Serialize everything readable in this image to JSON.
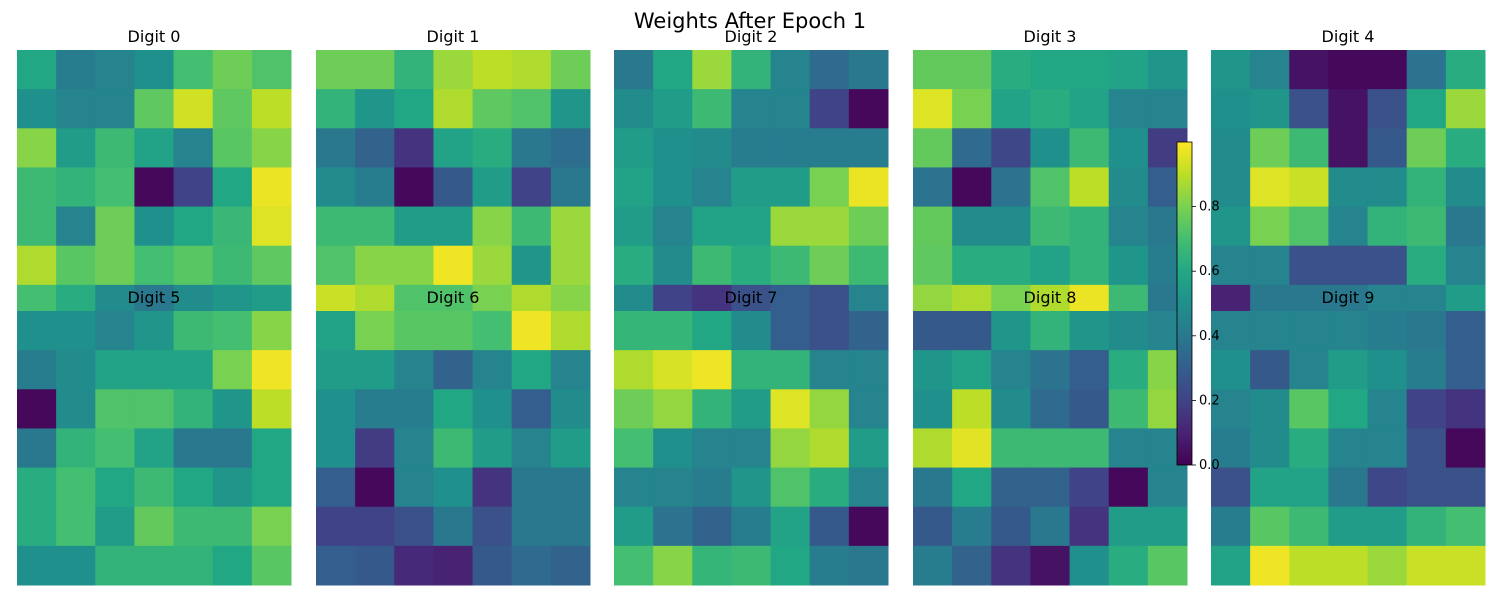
{
  "chart_data": {
    "type": "heatmap",
    "title": "Weights After Epoch 1",
    "colormap": "viridis",
    "colorbar": {
      "vmin": 0.0,
      "vmax": 1.0,
      "ticks": [
        "0.0",
        "0.2",
        "0.4",
        "0.6",
        "0.8"
      ]
    },
    "grid": false,
    "panels": [
      {
        "label": "Digit 0",
        "values": [
          [
            0.6,
            0.42,
            0.45,
            0.5,
            0.7,
            0.78,
            0.72
          ],
          [
            0.5,
            0.45,
            0.45,
            0.75,
            0.93,
            0.75,
            0.9
          ],
          [
            0.82,
            0.55,
            0.68,
            0.58,
            0.45,
            0.74,
            0.82
          ],
          [
            0.68,
            0.65,
            0.7,
            0.02,
            0.2,
            0.6,
            0.97
          ],
          [
            0.68,
            0.45,
            0.78,
            0.5,
            0.6,
            0.67,
            0.95
          ],
          [
            0.88,
            0.74,
            0.78,
            0.7,
            0.74,
            0.68,
            0.75
          ],
          [
            0.7,
            0.62,
            0.48,
            0.4,
            0.48,
            0.52,
            0.55
          ]
        ]
      },
      {
        "label": "Digit 1",
        "values": [
          [
            0.78,
            0.78,
            0.65,
            0.85,
            0.9,
            0.88,
            0.78
          ],
          [
            0.65,
            0.52,
            0.6,
            0.88,
            0.75,
            0.72,
            0.52
          ],
          [
            0.4,
            0.32,
            0.15,
            0.58,
            0.62,
            0.4,
            0.36
          ],
          [
            0.48,
            0.42,
            0.02,
            0.28,
            0.55,
            0.2,
            0.4
          ],
          [
            0.68,
            0.68,
            0.55,
            0.55,
            0.82,
            0.68,
            0.85
          ],
          [
            0.72,
            0.82,
            0.82,
            0.98,
            0.85,
            0.52,
            0.85
          ],
          [
            0.92,
            0.88,
            0.72,
            0.72,
            0.8,
            0.88,
            0.82
          ]
        ]
      },
      {
        "label": "Digit 2",
        "values": [
          [
            0.4,
            0.6,
            0.85,
            0.65,
            0.45,
            0.35,
            0.4
          ],
          [
            0.48,
            0.55,
            0.68,
            0.45,
            0.45,
            0.2,
            0.02
          ],
          [
            0.55,
            0.5,
            0.48,
            0.42,
            0.42,
            0.42,
            0.42
          ],
          [
            0.58,
            0.5,
            0.45,
            0.55,
            0.55,
            0.8,
            0.97
          ],
          [
            0.55,
            0.45,
            0.58,
            0.58,
            0.85,
            0.85,
            0.78
          ],
          [
            0.62,
            0.48,
            0.68,
            0.62,
            0.68,
            0.78,
            0.68
          ],
          [
            0.48,
            0.2,
            0.15,
            0.25,
            0.3,
            0.25,
            0.45
          ]
        ]
      },
      {
        "label": "Digit 3",
        "values": [
          [
            0.76,
            0.76,
            0.62,
            0.6,
            0.6,
            0.58,
            0.52
          ],
          [
            0.95,
            0.8,
            0.58,
            0.62,
            0.58,
            0.45,
            0.45
          ],
          [
            0.76,
            0.35,
            0.22,
            0.5,
            0.68,
            0.5,
            0.18
          ],
          [
            0.38,
            0.02,
            0.38,
            0.72,
            0.9,
            0.48,
            0.3
          ],
          [
            0.76,
            0.48,
            0.48,
            0.68,
            0.65,
            0.45,
            0.4
          ],
          [
            0.75,
            0.62,
            0.62,
            0.58,
            0.65,
            0.52,
            0.42
          ],
          [
            0.84,
            0.88,
            0.8,
            0.88,
            0.97,
            0.68,
            0.4
          ]
        ]
      },
      {
        "label": "Digit 4",
        "values": [
          [
            0.52,
            0.45,
            0.05,
            0.02,
            0.02,
            0.38,
            0.62
          ],
          [
            0.5,
            0.52,
            0.25,
            0.05,
            0.25,
            0.6,
            0.85
          ],
          [
            0.48,
            0.78,
            0.68,
            0.05,
            0.28,
            0.78,
            0.62
          ],
          [
            0.48,
            0.95,
            0.92,
            0.48,
            0.48,
            0.65,
            0.48
          ],
          [
            0.52,
            0.8,
            0.72,
            0.45,
            0.65,
            0.68,
            0.4
          ],
          [
            0.45,
            0.45,
            0.25,
            0.25,
            0.25,
            0.62,
            0.45
          ],
          [
            0.1,
            0.4,
            0.4,
            0.4,
            0.45,
            0.45,
            0.55
          ]
        ]
      },
      {
        "label": "Digit 5",
        "values": [
          [
            0.5,
            0.5,
            0.45,
            0.52,
            0.68,
            0.7,
            0.82
          ],
          [
            0.42,
            0.48,
            0.58,
            0.58,
            0.58,
            0.8,
            0.98
          ],
          [
            0.02,
            0.48,
            0.72,
            0.72,
            0.65,
            0.52,
            0.9
          ],
          [
            0.4,
            0.65,
            0.7,
            0.58,
            0.4,
            0.4,
            0.6
          ],
          [
            0.62,
            0.7,
            0.6,
            0.68,
            0.6,
            0.52,
            0.6
          ],
          [
            0.62,
            0.7,
            0.55,
            0.76,
            0.68,
            0.68,
            0.8
          ],
          [
            0.5,
            0.5,
            0.65,
            0.65,
            0.65,
            0.6,
            0.74
          ]
        ]
      },
      {
        "label": "Digit 6",
        "values": [
          [
            0.58,
            0.8,
            0.74,
            0.74,
            0.7,
            0.98,
            0.88
          ],
          [
            0.55,
            0.55,
            0.45,
            0.32,
            0.45,
            0.6,
            0.45
          ],
          [
            0.5,
            0.42,
            0.42,
            0.6,
            0.5,
            0.3,
            0.48
          ],
          [
            0.5,
            0.18,
            0.45,
            0.68,
            0.55,
            0.45,
            0.55
          ],
          [
            0.3,
            0.02,
            0.45,
            0.5,
            0.15,
            0.4,
            0.4
          ],
          [
            0.2,
            0.2,
            0.25,
            0.4,
            0.25,
            0.4,
            0.4
          ],
          [
            0.3,
            0.28,
            0.12,
            0.1,
            0.28,
            0.35,
            0.32
          ]
        ]
      },
      {
        "label": "Digit 7",
        "values": [
          [
            0.66,
            0.66,
            0.6,
            0.48,
            0.3,
            0.25,
            0.32
          ],
          [
            0.88,
            0.94,
            0.98,
            0.65,
            0.65,
            0.45,
            0.45
          ],
          [
            0.78,
            0.84,
            0.65,
            0.55,
            0.95,
            0.84,
            0.45
          ],
          [
            0.7,
            0.5,
            0.45,
            0.45,
            0.84,
            0.88,
            0.55
          ],
          [
            0.45,
            0.45,
            0.42,
            0.52,
            0.72,
            0.62,
            0.45
          ],
          [
            0.55,
            0.38,
            0.32,
            0.42,
            0.58,
            0.28,
            0.02
          ],
          [
            0.7,
            0.82,
            0.66,
            0.68,
            0.6,
            0.42,
            0.4
          ]
        ]
      },
      {
        "label": "Digit 8",
        "values": [
          [
            0.28,
            0.28,
            0.52,
            0.65,
            0.52,
            0.48,
            0.45
          ],
          [
            0.52,
            0.58,
            0.45,
            0.38,
            0.3,
            0.62,
            0.82
          ],
          [
            0.5,
            0.9,
            0.48,
            0.35,
            0.28,
            0.68,
            0.84
          ],
          [
            0.88,
            0.96,
            0.68,
            0.68,
            0.68,
            0.45,
            0.45
          ],
          [
            0.4,
            0.6,
            0.32,
            0.32,
            0.2,
            0.02,
            0.45
          ],
          [
            0.28,
            0.42,
            0.28,
            0.4,
            0.15,
            0.55,
            0.55
          ],
          [
            0.42,
            0.32,
            0.15,
            0.05,
            0.5,
            0.62,
            0.74
          ]
        ]
      },
      {
        "label": "Digit 9",
        "values": [
          [
            0.45,
            0.45,
            0.45,
            0.45,
            0.42,
            0.4,
            0.3
          ],
          [
            0.5,
            0.28,
            0.45,
            0.55,
            0.5,
            0.42,
            0.3
          ],
          [
            0.45,
            0.48,
            0.74,
            0.6,
            0.45,
            0.2,
            0.15
          ],
          [
            0.42,
            0.48,
            0.62,
            0.45,
            0.45,
            0.25,
            0.02
          ],
          [
            0.25,
            0.58,
            0.58,
            0.4,
            0.22,
            0.25,
            0.25
          ],
          [
            0.42,
            0.74,
            0.68,
            0.55,
            0.55,
            0.65,
            0.7
          ],
          [
            0.58,
            0.98,
            0.9,
            0.9,
            0.85,
            0.92,
            0.92
          ]
        ]
      }
    ]
  }
}
